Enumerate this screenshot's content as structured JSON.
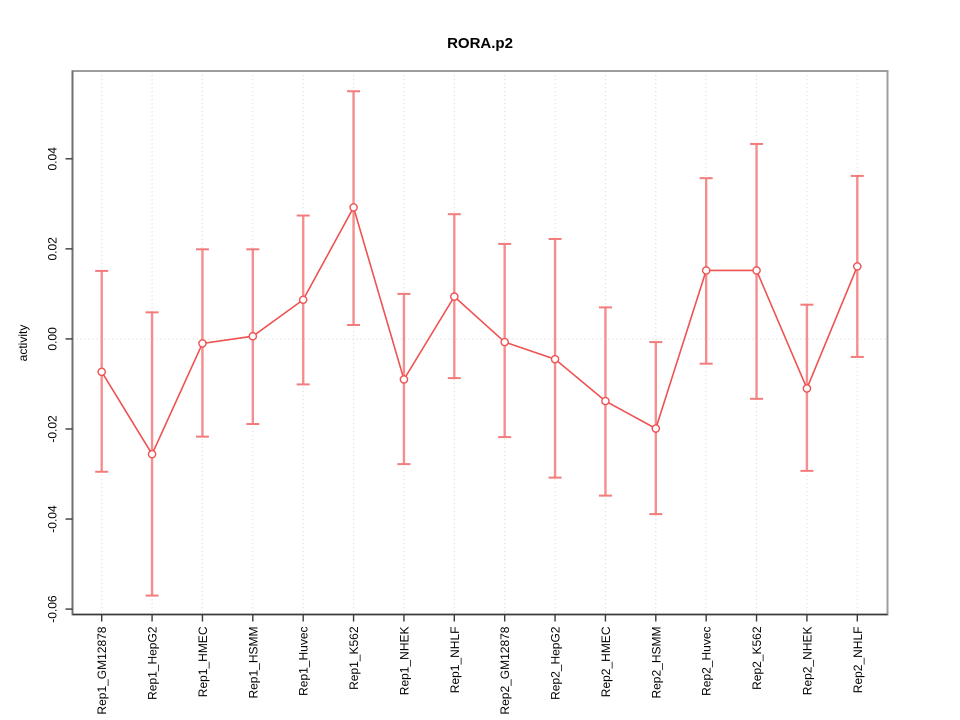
{
  "title": "RORA.p2",
  "ylabel": "activity",
  "chart_data": {
    "type": "scatter",
    "title": "RORA.p2",
    "xlabel": "",
    "ylabel": "activity",
    "categories": [
      "Rep1_GM12878",
      "Rep1_HepG2",
      "Rep1_HMEC",
      "Rep1_HSMM",
      "Rep1_Huvec",
      "Rep1_K562",
      "Rep1_NHEK",
      "Rep1_NHLF",
      "Rep2_GM12878",
      "Rep2_HepG2",
      "Rep2_HMEC",
      "Rep2_HSMM",
      "Rep2_Huvec",
      "Rep2_K562",
      "Rep2_NHEK",
      "Rep2_NHLF"
    ],
    "series": [
      {
        "name": "activity",
        "marker": "open-circle",
        "values": [
          -0.0073,
          -0.0256,
          -0.001,
          0.0006,
          0.0087,
          0.0292,
          -0.009,
          0.0094,
          -0.0007,
          -0.0045,
          -0.0138,
          -0.0199,
          0.0152,
          0.0152,
          -0.011,
          0.0161
        ],
        "error_low": [
          -0.0295,
          -0.057,
          -0.0217,
          -0.0189,
          -0.0101,
          0.0031,
          -0.0278,
          -0.0087,
          -0.0218,
          -0.0308,
          -0.0348,
          -0.0389,
          -0.0055,
          -0.0133,
          -0.0293,
          -0.004
        ],
        "error_high": [
          0.0151,
          0.0059,
          0.0199,
          0.0199,
          0.0274,
          0.055,
          0.01,
          0.0277,
          0.0211,
          0.0222,
          0.007,
          -0.0007,
          0.0357,
          0.0433,
          0.0076,
          0.0362
        ]
      }
    ],
    "ylim": [
      -0.0612,
      0.0595
    ],
    "yticks": [
      -0.06,
      -0.04,
      -0.02,
      0.0,
      0.02,
      0.04
    ],
    "ytick_labels": [
      "-0.06",
      "-0.04",
      "-0.02",
      "0.00",
      "0.02",
      "0.04"
    ],
    "grid": "vertical-dotted",
    "zero_line": true,
    "x_label_rotation": 90,
    "y_label_rotation": 90,
    "legend": "none",
    "colors": {
      "point": "#ee5252",
      "line": "#ee5252",
      "error_bar": "#f58e8e",
      "error_cap": "#f27b7b",
      "grid": "#e1e1e1",
      "zero_line_color": "#e0dcdc",
      "box": "#9d9d9d",
      "axis": "#6f6f6f",
      "tick": "#3a3a3a",
      "text": "#000000",
      "background": "#ffffff"
    }
  }
}
